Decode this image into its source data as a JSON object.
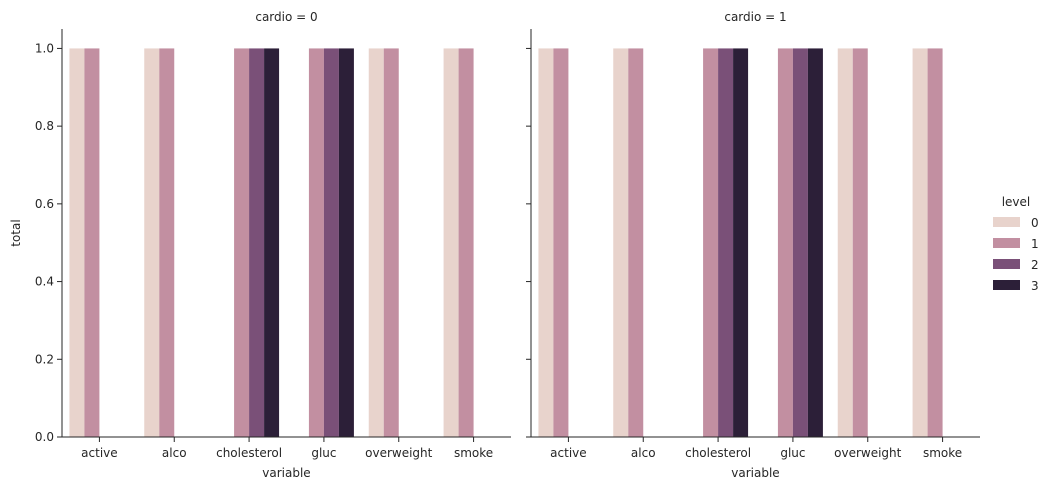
{
  "chart_data": {
    "type": "bar",
    "ylabel": "total",
    "xlabel": "variable",
    "ylim": [
      0,
      1.05
    ],
    "yticks": [
      "0.0",
      "0.2",
      "0.4",
      "0.6",
      "0.8",
      "1.0"
    ],
    "ytick_values": [
      0,
      0.2,
      0.4,
      0.6,
      0.8,
      1.0
    ],
    "categories": [
      "active",
      "alco",
      "cholesterol",
      "gluc",
      "overweight",
      "smoke"
    ],
    "hue_levels": [
      "0",
      "1",
      "2",
      "3"
    ],
    "hue_colors": [
      "#e8d3cc",
      "#c28fa1",
      "#7a5078",
      "#2c1f38"
    ],
    "legend": {
      "title": "level",
      "placement": "right",
      "entries": [
        "0",
        "1",
        "2",
        "3"
      ]
    },
    "panels": [
      {
        "title": "cardio = 0",
        "series": [
          {
            "name": "0",
            "values": [
              1,
              1,
              0,
              0,
              1,
              1
            ]
          },
          {
            "name": "1",
            "values": [
              1,
              1,
              1,
              1,
              1,
              1
            ]
          },
          {
            "name": "2",
            "values": [
              0,
              0,
              1,
              1,
              0,
              0
            ]
          },
          {
            "name": "3",
            "values": [
              0,
              0,
              1,
              1,
              0,
              0
            ]
          }
        ]
      },
      {
        "title": "cardio = 1",
        "series": [
          {
            "name": "0",
            "values": [
              1,
              1,
              0,
              0,
              1,
              1
            ]
          },
          {
            "name": "1",
            "values": [
              1,
              1,
              1,
              1,
              1,
              1
            ]
          },
          {
            "name": "2",
            "values": [
              0,
              0,
              1,
              1,
              0,
              0
            ]
          },
          {
            "name": "3",
            "values": [
              0,
              0,
              1,
              1,
              0,
              0
            ]
          }
        ]
      }
    ]
  }
}
